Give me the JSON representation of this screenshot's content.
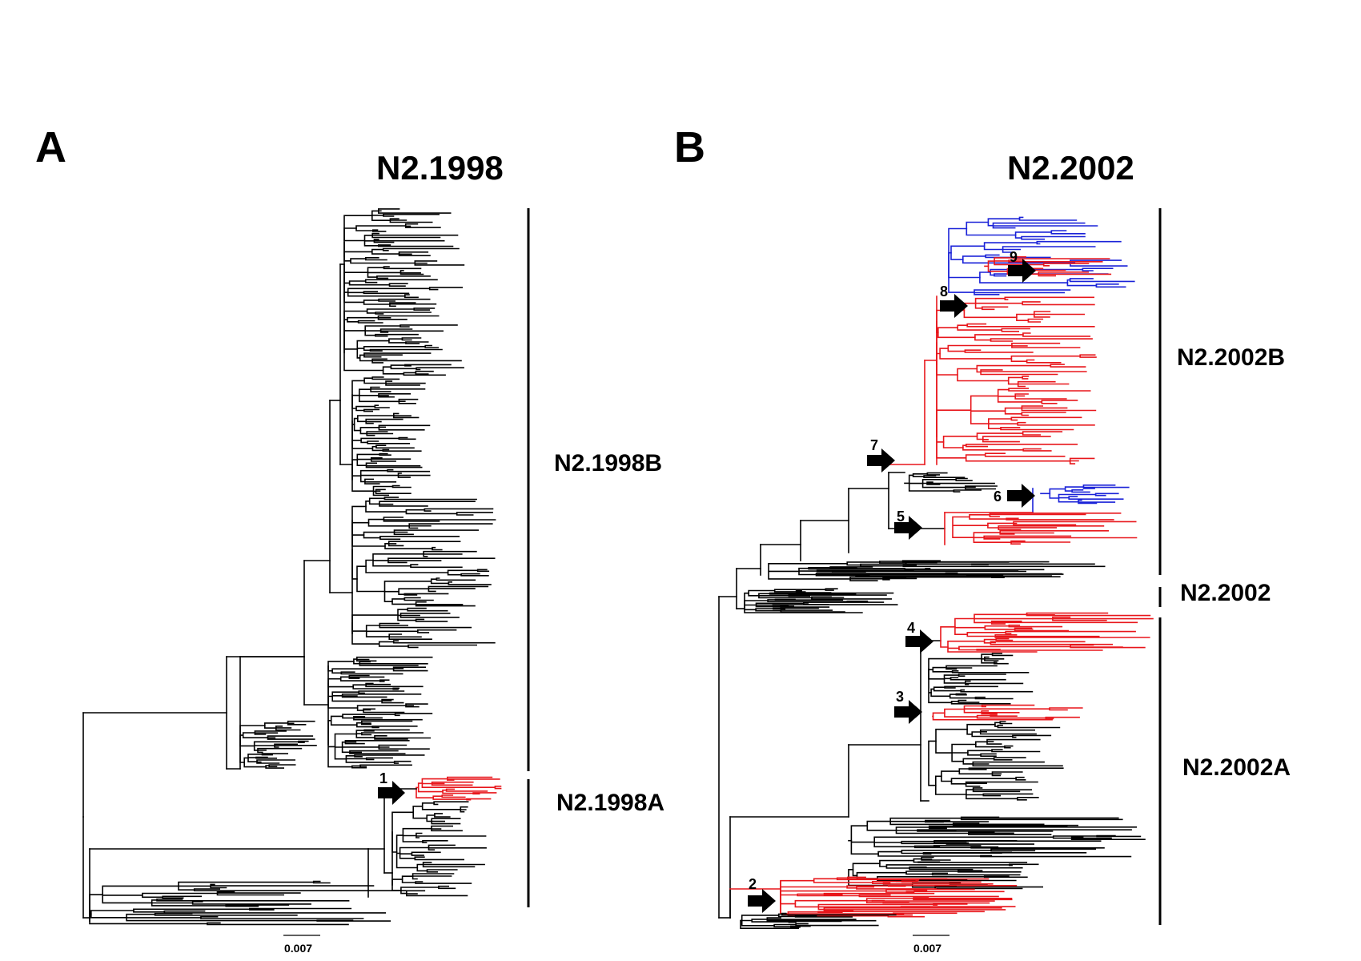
{
  "panels": [
    {
      "letter": "A",
      "title": "N2.1998",
      "clades": [
        "N2.1998B",
        "N2.1998A"
      ],
      "arrows": [
        "1"
      ],
      "scale_label": "0.007"
    },
    {
      "letter": "B",
      "title": "N2.2002",
      "clades": [
        "N2.2002B",
        "N2.2002",
        "N2.2002A"
      ],
      "arrows": [
        "9",
        "8",
        "7",
        "6",
        "5",
        "4",
        "3",
        "2"
      ],
      "scale_label": "0.007"
    }
  ],
  "colors": {
    "branch_default": "#000000",
    "highlight_red": "#e8161b",
    "highlight_blue": "#1a22d8"
  }
}
